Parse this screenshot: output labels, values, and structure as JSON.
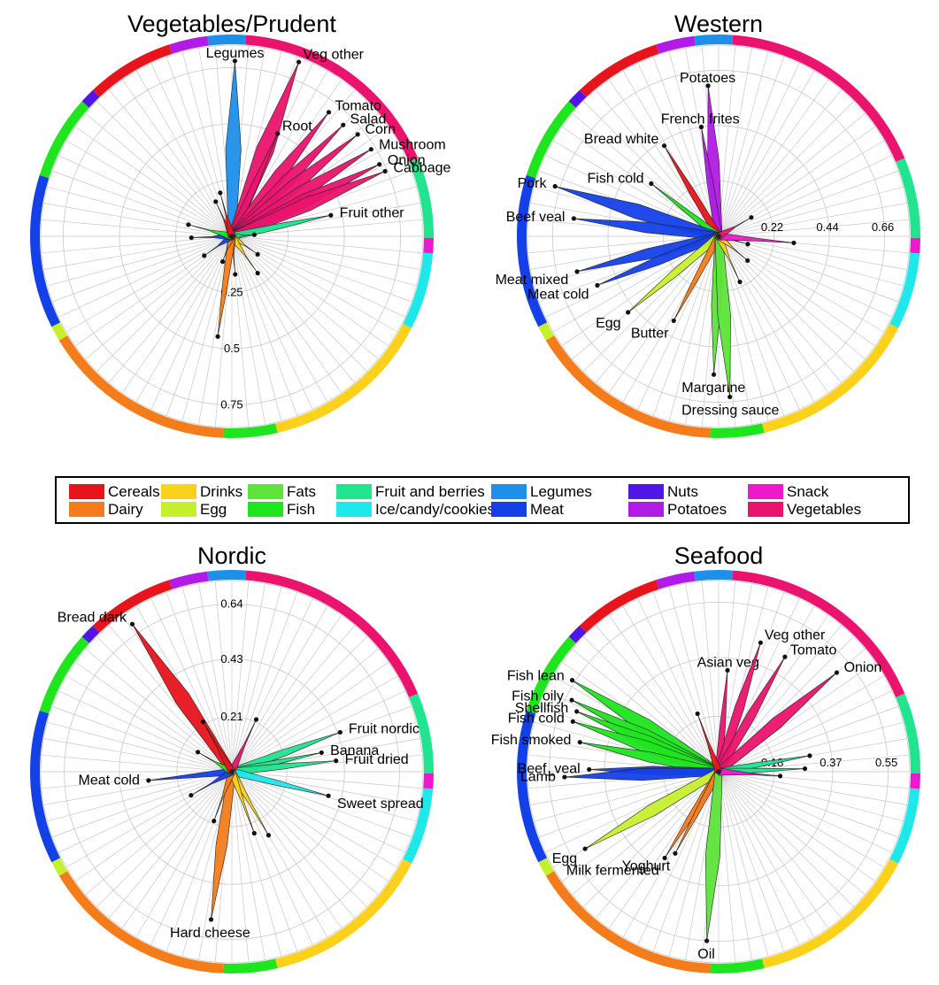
{
  "chart_data": {
    "type": "radial",
    "categories": [
      {
        "name": "Cereals",
        "color": "#e8141b"
      },
      {
        "name": "Dairy",
        "color": "#f47c1b"
      },
      {
        "name": "Drinks",
        "color": "#fbd11c"
      },
      {
        "name": "Egg",
        "color": "#c6f02e"
      },
      {
        "name": "Fats",
        "color": "#5ee33a"
      },
      {
        "name": "Fish",
        "color": "#1fe51f"
      },
      {
        "name": "Fruit and berries",
        "color": "#21e48e"
      },
      {
        "name": "Ice/candy/cookies",
        "color": "#1fe8ea"
      },
      {
        "name": "Legumes",
        "color": "#1e90ea"
      },
      {
        "name": "Meat",
        "color": "#1440e8"
      },
      {
        "name": "Nuts",
        "color": "#4f16e6"
      },
      {
        "name": "Potatoes",
        "color": "#b11be6"
      },
      {
        "name": "Snack",
        "color": "#ee19cc"
      },
      {
        "name": "Vegetables",
        "color": "#ea136d"
      }
    ],
    "ring_sequence": [
      "Legumes",
      "Vegetables",
      "Fruit and berries",
      "Snack",
      "Ice/candy/cookies",
      "Drinks",
      "Fish",
      "Dairy",
      "Egg",
      "Meat",
      "Fish",
      "Nuts",
      "Cereals",
      "Potatoes"
    ],
    "ring_spans": [
      10,
      57,
      21,
      4,
      20,
      45,
      14,
      51,
      4,
      40,
      22,
      4,
      23,
      10
    ],
    "panels": [
      {
        "title": "Vegetables/Prudent",
        "ticks": [
          "0.25",
          "0.5",
          "0.75"
        ],
        "rmax": 0.85,
        "spikes": [
          {
            "label": "Legumes",
            "category": "Legumes",
            "angle": 1,
            "value": 0.78
          },
          {
            "label": "Veg other",
            "category": "Vegetables",
            "angle": 21,
            "value": 0.83
          },
          {
            "label": "Root",
            "category": "Vegetables",
            "angle": 24,
            "value": 0.5
          },
          {
            "label": "Tomato",
            "category": "Vegetables",
            "angle": 38,
            "value": 0.7
          },
          {
            "label": "Salad",
            "category": "Vegetables",
            "angle": 45,
            "value": 0.7
          },
          {
            "label": "Corn",
            "category": "Vegetables",
            "angle": 51,
            "value": 0.72
          },
          {
            "label": "Mushroom",
            "category": "Vegetables",
            "angle": 58,
            "value": 0.73
          },
          {
            "label": "Onion",
            "category": "Vegetables",
            "angle": 64,
            "value": 0.73
          },
          {
            "label": "Cabbage",
            "category": "Vegetables",
            "angle": 67,
            "value": 0.74
          },
          {
            "label": "Fruit other",
            "category": "Fruit and berries",
            "angle": 78,
            "value": 0.45
          },
          {
            "label": "",
            "category": "Fruit and berries",
            "angle": 86,
            "value": 0.1
          },
          {
            "label": "",
            "category": "Drinks",
            "angle": 125,
            "value": 0.14
          },
          {
            "label": "",
            "category": "Drinks",
            "angle": 145,
            "value": 0.2
          },
          {
            "label": "",
            "category": "Dairy",
            "angle": 175,
            "value": 0.17
          },
          {
            "label": "",
            "category": "Dairy",
            "angle": 188,
            "value": 0.45
          },
          {
            "label": "",
            "category": "Dairy",
            "angle": 200,
            "value": 0.12
          },
          {
            "label": "",
            "category": "Meat",
            "angle": 235,
            "value": 0.15
          },
          {
            "label": "",
            "category": "Meat",
            "angle": 268,
            "value": 0.18
          },
          {
            "label": "",
            "category": "Fish",
            "angle": 285,
            "value": 0.2
          },
          {
            "label": "",
            "category": "Cereals",
            "angle": 335,
            "value": 0.17
          },
          {
            "label": "",
            "category": "Cereals",
            "angle": 345,
            "value": 0.2
          }
        ]
      },
      {
        "title": "Western",
        "ticks": [
          "0.22",
          "0.44",
          "0.66"
        ],
        "rmax": 0.76,
        "spikes": [
          {
            "label": "Potatoes",
            "category": "Potatoes",
            "angle": -4,
            "value": 0.6
          },
          {
            "label": "French frites",
            "category": "Potatoes",
            "angle": -9,
            "value": 0.44
          },
          {
            "label": "Bread white",
            "category": "Cereals",
            "angle": -31,
            "value": 0.42
          },
          {
            "label": "Fish cold",
            "category": "Fish",
            "angle": -52,
            "value": 0.34
          },
          {
            "label": "Pork",
            "category": "Meat",
            "angle": -73,
            "value": 0.68
          },
          {
            "label": "Beef veal",
            "category": "Meat",
            "angle": -83,
            "value": 0.58
          },
          {
            "label": "Meat mixed",
            "category": "Meat",
            "angle": -104,
            "value": 0.58
          },
          {
            "label": "Meat cold",
            "category": "Meat",
            "angle": -112,
            "value": 0.52
          },
          {
            "label": "Egg",
            "category": "Egg",
            "angle": -130,
            "value": 0.47
          },
          {
            "label": "Butter",
            "category": "Dairy",
            "angle": -152,
            "value": 0.38
          },
          {
            "label": "Margarine",
            "category": "Fats",
            "angle": -178,
            "value": 0.55
          },
          {
            "label": "Dressing sauce",
            "category": "Fats",
            "angle": -184,
            "value": 0.64
          },
          {
            "label": "",
            "category": "Drinks",
            "angle": 155,
            "value": 0.2
          },
          {
            "label": "",
            "category": "Drinks",
            "angle": 130,
            "value": 0.15
          },
          {
            "label": "",
            "category": "Ice/candy/cookies",
            "angle": 105,
            "value": 0.12
          },
          {
            "label": "",
            "category": "Snack",
            "angle": 95,
            "value": 0.3
          },
          {
            "label": "",
            "category": "Vegetables",
            "angle": 60,
            "value": 0.15
          }
        ]
      },
      {
        "title": "Nordic",
        "ticks": [
          "0.21",
          "0.43",
          "0.64"
        ],
        "rmax": 0.73,
        "spikes": [
          {
            "label": "Bread dark",
            "category": "Cereals",
            "angle": -34,
            "value": 0.68
          },
          {
            "label": "Fruit nordic",
            "category": "Fruit and berries",
            "angle": 70,
            "value": 0.44
          },
          {
            "label": "Banana",
            "category": "Fruit and berries",
            "angle": 78,
            "value": 0.35
          },
          {
            "label": "Fruit dried",
            "category": "Fruit and berries",
            "angle": 84,
            "value": 0.4
          },
          {
            "label": "Sweet spread",
            "category": "Ice/candy/cookies",
            "angle": 104,
            "value": 0.38
          },
          {
            "label": "Hard cheese",
            "category": "Dairy",
            "angle": 188,
            "value": 0.57
          },
          {
            "label": "Meat cold",
            "category": "Meat",
            "angle": 264,
            "value": 0.32
          },
          {
            "label": "",
            "category": "Vegetables",
            "angle": 25,
            "value": 0.22
          },
          {
            "label": "",
            "category": "Drinks",
            "angle": 150,
            "value": 0.28
          },
          {
            "label": "",
            "category": "Drinks",
            "angle": 160,
            "value": 0.25
          },
          {
            "label": "",
            "category": "Dairy",
            "angle": 200,
            "value": 0.2
          },
          {
            "label": "",
            "category": "Meat",
            "angle": 240,
            "value": 0.18
          },
          {
            "label": "",
            "category": "Fish",
            "angle": 300,
            "value": 0.15
          },
          {
            "label": "",
            "category": "Cereals",
            "angle": 330,
            "value": 0.22
          }
        ]
      },
      {
        "title": "Seafood",
        "ticks": [
          "0.18",
          "0.37",
          "0.55"
        ],
        "rmax": 0.62,
        "spikes": [
          {
            "label": "Fish lean",
            "category": "Fish",
            "angle": -58,
            "value": 0.56
          },
          {
            "label": "Fish oily",
            "category": "Fish",
            "angle": -64,
            "value": 0.53
          },
          {
            "label": "Shellfish",
            "category": "Fish",
            "angle": -67,
            "value": 0.5
          },
          {
            "label": "Fish cold",
            "category": "Fish",
            "angle": -71,
            "value": 0.5
          },
          {
            "label": "Fish smoked",
            "category": "Fish",
            "angle": -78,
            "value": 0.46
          },
          {
            "label": "Beef_veal",
            "category": "Meat",
            "angle": -89,
            "value": 0.42
          },
          {
            "label": "Lamb",
            "category": "Meat",
            "angle": -92,
            "value": 0.5
          },
          {
            "label": "Egg",
            "category": "Egg",
            "angle": -120,
            "value": 0.5
          },
          {
            "label": "Milk fermented",
            "category": "Dairy",
            "angle": -148,
            "value": 0.33
          },
          {
            "label": "Yoghurt",
            "category": "Dairy",
            "angle": -152,
            "value": 0.3
          },
          {
            "label": "Oil",
            "category": "Fats",
            "angle": -176,
            "value": 0.55
          },
          {
            "label": "Asian veg",
            "category": "Vegetables",
            "angle": 5,
            "value": 0.33
          },
          {
            "label": "Veg other",
            "category": "Vegetables",
            "angle": 18,
            "value": 0.44
          },
          {
            "label": "Tomato",
            "category": "Vegetables",
            "angle": 30,
            "value": 0.43
          },
          {
            "label": "Onion",
            "category": "Vegetables",
            "angle": 50,
            "value": 0.5
          },
          {
            "label": "",
            "category": "Fruit and berries",
            "angle": 80,
            "value": 0.3
          },
          {
            "label": "",
            "category": "Fruit and berries",
            "angle": 88,
            "value": 0.28
          },
          {
            "label": "",
            "category": "Snack",
            "angle": 94,
            "value": 0.2
          },
          {
            "label": "",
            "category": "Cereals",
            "angle": -20,
            "value": 0.2
          }
        ]
      }
    ]
  }
}
